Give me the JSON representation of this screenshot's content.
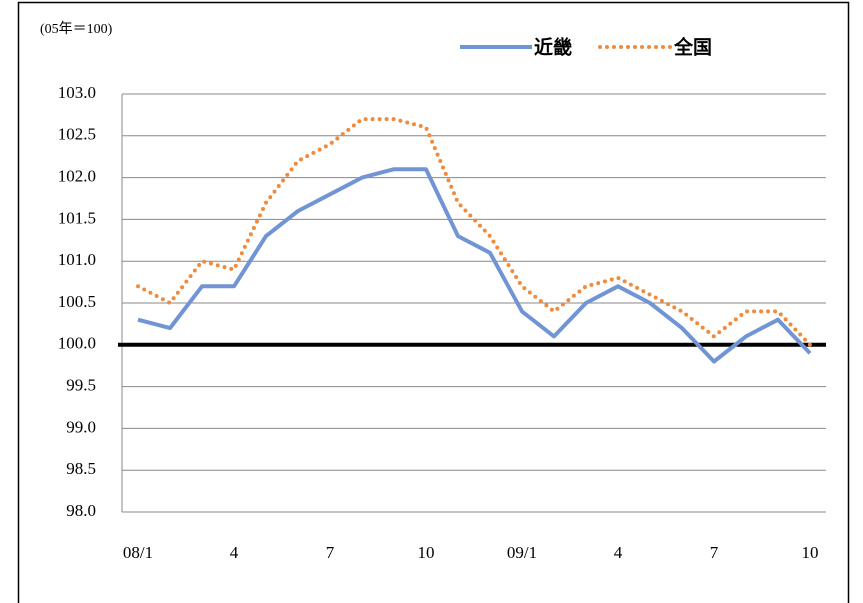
{
  "chart_data": {
    "type": "line",
    "ylabel": "(05年＝100)",
    "categories": [
      "08/1",
      null,
      null,
      "4",
      null,
      null,
      "7",
      null,
      null,
      "10",
      null,
      null,
      "09/1",
      null,
      null,
      "4",
      null,
      null,
      "7",
      null,
      null,
      "10"
    ],
    "series": [
      {
        "name": "近畿",
        "color": "#7094d4",
        "style": "solid",
        "values": [
          100.3,
          100.2,
          100.7,
          100.7,
          101.3,
          101.6,
          101.8,
          102.0,
          102.1,
          102.1,
          101.3,
          101.1,
          100.4,
          100.1,
          100.5,
          100.7,
          100.5,
          100.2,
          99.8,
          100.1,
          100.3,
          99.9
        ]
      },
      {
        "name": "全国",
        "color": "#f08a3c",
        "style": "dotted",
        "values": [
          100.7,
          100.5,
          101.0,
          100.9,
          101.7,
          102.2,
          102.4,
          102.7,
          102.7,
          102.6,
          101.7,
          101.3,
          100.7,
          100.4,
          100.7,
          100.8,
          100.6,
          100.4,
          100.1,
          100.4,
          100.4,
          100.0
        ]
      }
    ],
    "ylim": [
      98,
      103
    ],
    "yticks": [
      {
        "value": 103,
        "label": "103.0"
      },
      102.5,
      {
        "value": 102,
        "label": "102.0"
      },
      101.5,
      {
        "value": 101,
        "label": "101.0"
      },
      100.5,
      {
        "value": 100,
        "label": "100.0"
      },
      99.5,
      {
        "value": 99,
        "label": "99.0"
      },
      98.5,
      {
        "value": 98,
        "label": "98.0"
      }
    ],
    "grid": true,
    "reference_line": 100,
    "legend": "top"
  }
}
